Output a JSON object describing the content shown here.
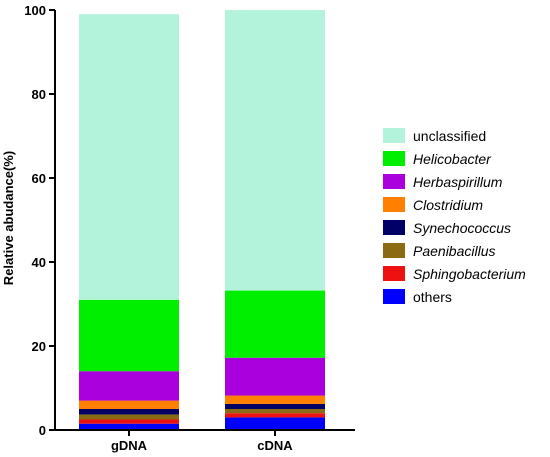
{
  "chart_data": {
    "type": "bar",
    "stacked": true,
    "title": "",
    "xlabel": "",
    "ylabel": "Relative abudance(%)",
    "ylim": [
      0,
      100
    ],
    "yticks": [
      0,
      20,
      40,
      60,
      80,
      100
    ],
    "categories": [
      "gDNA",
      "cDNA"
    ],
    "legend_position": "right",
    "series": [
      {
        "name": "others",
        "color": "#0000ff",
        "italic": false,
        "values": [
          1.5,
          3.0
        ]
      },
      {
        "name": "Sphingobacterium",
        "color": "#ee1111",
        "italic": true,
        "values": [
          1.0,
          1.0
        ]
      },
      {
        "name": "Paenibacillus",
        "color": "#8b6a14",
        "italic": true,
        "values": [
          1.2,
          1.0
        ]
      },
      {
        "name": "Synechococcus",
        "color": "#000066",
        "italic": true,
        "values": [
          1.3,
          1.2
        ]
      },
      {
        "name": "Clostridium",
        "color": "#ff8000",
        "italic": true,
        "values": [
          2.0,
          2.0
        ]
      },
      {
        "name": "Herbaspirillum",
        "color": "#aa00dd",
        "italic": true,
        "values": [
          7.0,
          9.0
        ]
      },
      {
        "name": "Helicobacter",
        "color": "#00ee00",
        "italic": true,
        "values": [
          17.0,
          16.0
        ]
      },
      {
        "name": "unclassified",
        "color": "#b3f3dc",
        "italic": false,
        "values": [
          68.0,
          66.8
        ]
      }
    ]
  }
}
